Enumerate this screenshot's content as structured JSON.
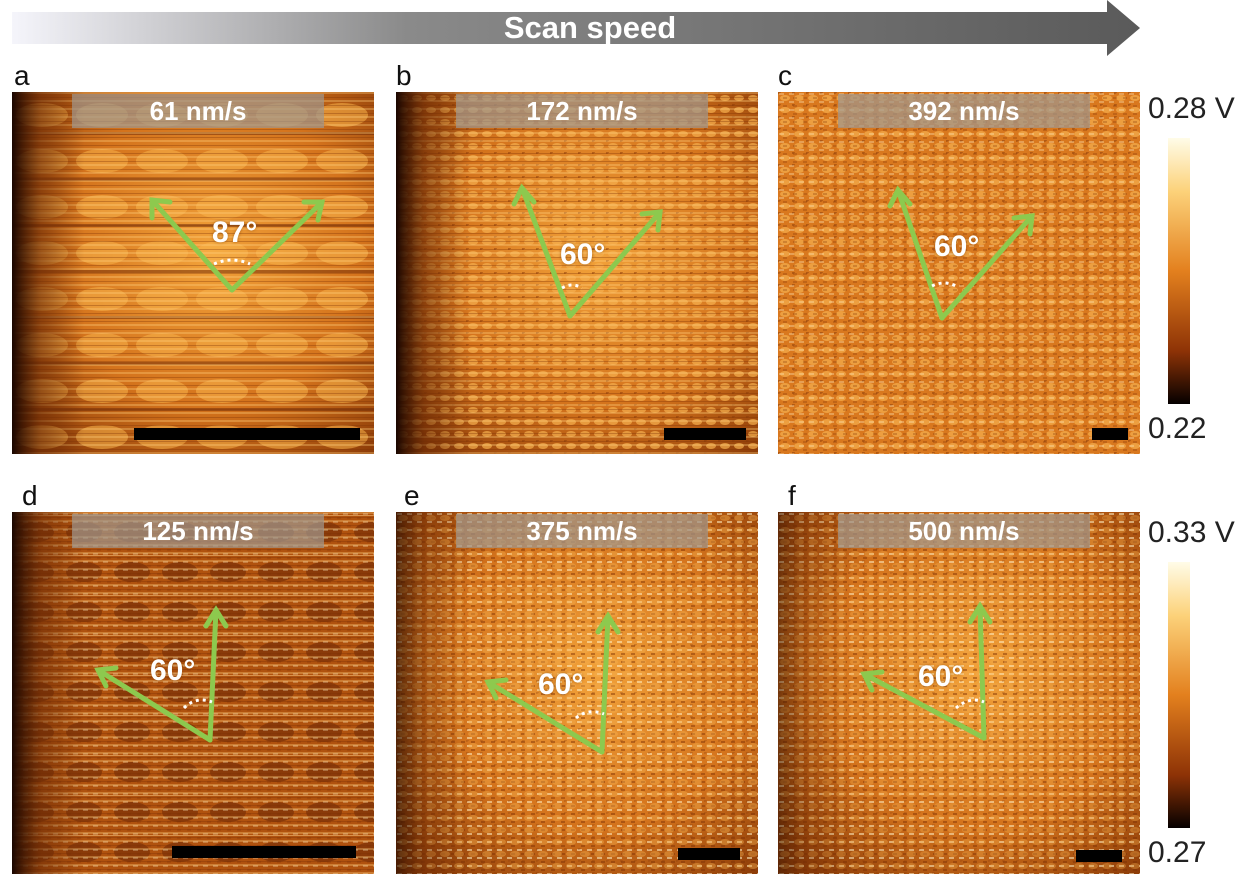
{
  "header": {
    "title": "Scan speed"
  },
  "colors": {
    "arrow_light": "#f5f5fb",
    "arrow_dark": "#5f5f5f",
    "vector": "#8dc94e",
    "label_box": "#a0968c"
  },
  "panels": [
    {
      "letter": "a",
      "speed": "61 nm/s",
      "angle": "87°"
    },
    {
      "letter": "b",
      "speed": "172 nm/s",
      "angle": "60°"
    },
    {
      "letter": "c",
      "speed": "392 nm/s",
      "angle": "60°"
    },
    {
      "letter": "d",
      "speed": "125 nm/s",
      "angle": "60°"
    },
    {
      "letter": "e",
      "speed": "375 nm/s",
      "angle": "60°"
    },
    {
      "letter": "f",
      "speed": "500 nm/s",
      "angle": "60°"
    }
  ],
  "colorbars": [
    {
      "max": "0.28 V",
      "min": "0.22"
    },
    {
      "max": "0.33 V",
      "min": "0.27"
    }
  ]
}
